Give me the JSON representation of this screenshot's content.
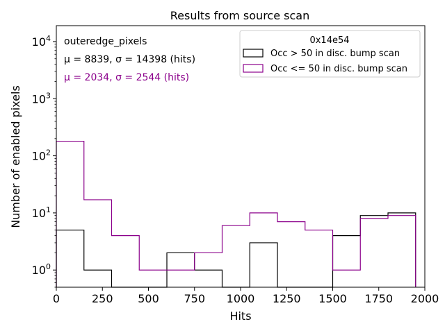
{
  "chart_data": {
    "type": "histogram",
    "title": "Results from source scan",
    "xlabel": "Hits",
    "ylabel": "Number of enabled pixels",
    "xlim": [
      0,
      2000
    ],
    "ylim": [
      0.5,
      19000
    ],
    "yscale": "log",
    "xticks": [
      0,
      250,
      500,
      750,
      1000,
      1250,
      1500,
      1750,
      2000
    ],
    "xtick_labels": [
      "0",
      "250",
      "500",
      "750",
      "1000",
      "1250",
      "1500",
      "1750",
      "2000"
    ],
    "yticks": [
      1,
      10,
      100,
      1000,
      10000
    ],
    "ytick_labels": [
      {
        "base": "10",
        "exp": "0"
      },
      {
        "base": "10",
        "exp": "1"
      },
      {
        "base": "10",
        "exp": "2"
      },
      {
        "base": "10",
        "exp": "3"
      },
      {
        "base": "10",
        "exp": "4"
      }
    ],
    "bin_edges": [
      0,
      150,
      300,
      450,
      600,
      750,
      900,
      1050,
      1200,
      1350,
      1500,
      1650,
      1800,
      1950
    ],
    "annotations": {
      "label": "outeredge_pixels",
      "stats": [
        {
          "text": "μ = 8839, σ = 14398 (hits)",
          "color": "#000000"
        },
        {
          "text": "μ = 2034, σ = 2544 (hits)",
          "color": "#8b008b"
        }
      ]
    },
    "legend": {
      "title": "0x14e54",
      "placement": "top-right"
    },
    "series": [
      {
        "name": "Occ > 50 in disc. bump scan",
        "color": "#000000",
        "values": [
          5,
          1,
          0,
          0,
          2,
          1,
          0,
          3,
          0,
          0,
          4,
          9,
          10
        ]
      },
      {
        "name": "Occ <= 50 in disc. bump scan",
        "color": "#8b008b",
        "values": [
          180,
          17,
          4,
          1,
          1,
          2,
          6,
          10,
          7,
          5,
          1,
          8,
          9
        ]
      }
    ]
  }
}
